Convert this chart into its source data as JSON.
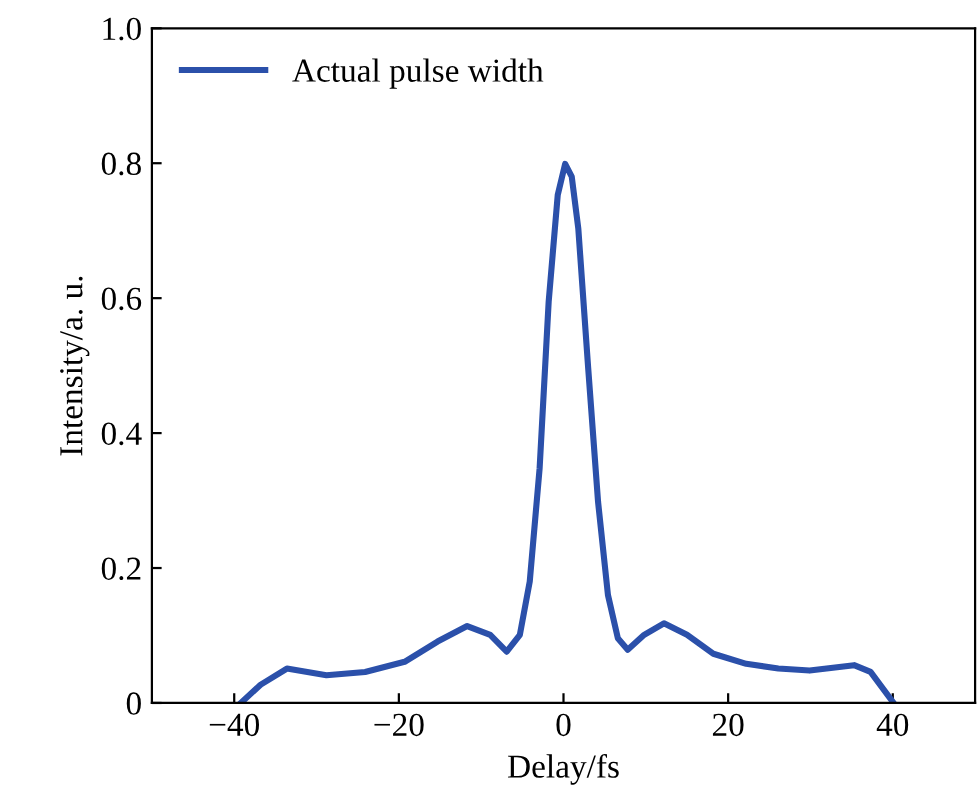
{
  "chart_data": {
    "type": "line",
    "xlabel": "Delay/fs",
    "ylabel": "Intensity/a. u.",
    "xlim": [
      -50,
      50
    ],
    "ylim": [
      0,
      1.0
    ],
    "xticks": [
      -40,
      -20,
      0,
      20,
      40
    ],
    "yticks": [
      0,
      0.2,
      0.4,
      0.6,
      0.8,
      {
        "value": 1,
        "label": "1.0"
      }
    ],
    "grid": false,
    "legend": "top left",
    "marker": "none",
    "line_style": "solid",
    "series": [
      {
        "name": "Actual pulse width",
        "color": "#2b50aa",
        "x": [
          -39.2,
          -36.8,
          -33.6,
          -28.8,
          -24.1,
          -19.3,
          -15.3,
          -11.7,
          -8.9,
          -6.9,
          -5.3,
          -4.1,
          -2.9,
          -1.8,
          -0.7,
          0.2,
          1.0,
          1.8,
          3.0,
          4.2,
          5.4,
          6.6,
          7.8,
          9.8,
          12.2,
          15.0,
          18.2,
          22.2,
          26.1,
          29.9,
          35.3,
          37.3,
          40.1
        ],
        "values": [
          0,
          0.027,
          0.051,
          0.041,
          0.046,
          0.061,
          0.091,
          0.114,
          0.101,
          0.076,
          0.101,
          0.18,
          0.348,
          0.595,
          0.753,
          0.799,
          0.78,
          0.703,
          0.496,
          0.298,
          0.16,
          0.096,
          0.079,
          0.101,
          0.118,
          0.101,
          0.073,
          0.058,
          0.051,
          0.048,
          0.056,
          0.046,
          0
        ]
      }
    ]
  }
}
